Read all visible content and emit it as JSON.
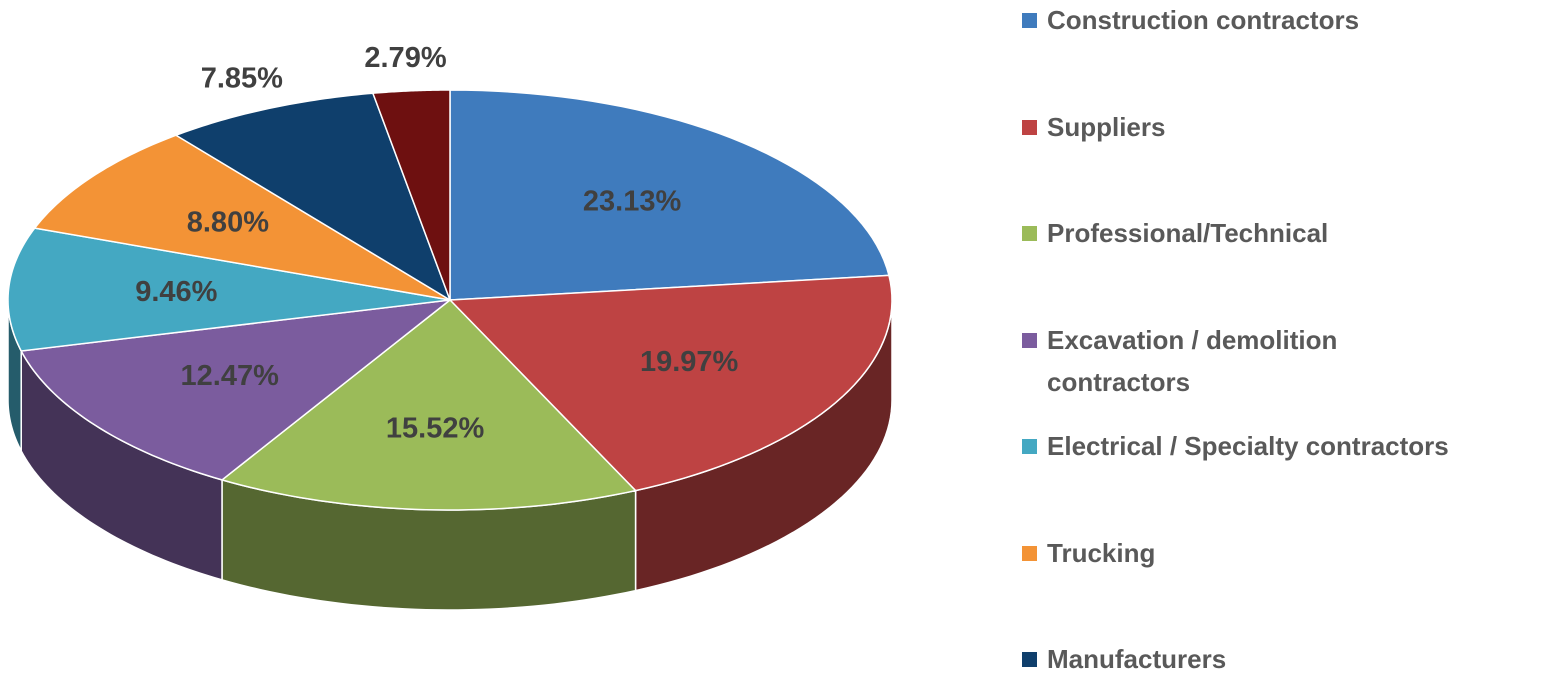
{
  "chart_data": {
    "type": "pie3d",
    "categories": [
      "Construction contractors",
      "Suppliers",
      "Professional/Technical",
      "Excavation / demolition contractors",
      "Electrical / Specialty contractors",
      "Trucking",
      "Manufacturers",
      null
    ],
    "values": [
      23.13,
      19.97,
      15.52,
      12.47,
      9.46,
      8.8,
      7.85,
      2.79
    ],
    "value_labels": [
      "23.13%",
      "19.97%",
      "15.52%",
      "12.47%",
      "9.46%",
      "8.80%",
      "7.85%",
      "2.79%"
    ],
    "colors": [
      "#3f7bbd",
      "#be4343",
      "#9bbb59",
      "#7b5c9e",
      "#44a8c2",
      "#f39336",
      "#0f3f6c",
      "#6e1010"
    ],
    "legend": "right"
  }
}
